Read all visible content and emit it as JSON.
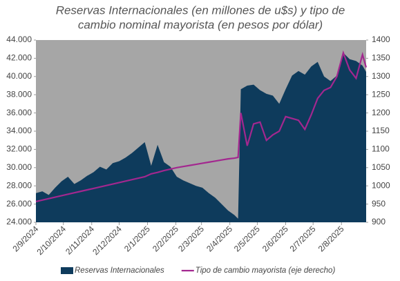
{
  "chart_data": {
    "type": "area-line",
    "title": [
      "Reservas Internacionales (en millones de u$s) y tipo de",
      "cambio nominal mayorista (en pesos por dólar)"
    ],
    "x": [
      "2024-09-02",
      "2024-09-09",
      "2024-09-16",
      "2024-09-23",
      "2024-09-30",
      "2024-10-07",
      "2024-10-14",
      "2024-10-21",
      "2024-10-28",
      "2024-11-04",
      "2024-11-11",
      "2024-11-18",
      "2024-11-25",
      "2024-12-02",
      "2024-12-09",
      "2024-12-16",
      "2024-12-23",
      "2024-12-30",
      "2025-01-06",
      "2025-01-13",
      "2025-01-20",
      "2025-01-27",
      "2025-02-03",
      "2025-02-10",
      "2025-02-17",
      "2025-02-24",
      "2025-03-03",
      "2025-03-10",
      "2025-03-17",
      "2025-03-24",
      "2025-03-31",
      "2025-04-07",
      "2025-04-11",
      "2025-04-14",
      "2025-04-21",
      "2025-04-28",
      "2025-05-05",
      "2025-05-12",
      "2025-05-19",
      "2025-05-26",
      "2025-06-02",
      "2025-06-09",
      "2025-06-16",
      "2025-06-23",
      "2025-06-30",
      "2025-07-07",
      "2025-07-14",
      "2025-07-21",
      "2025-07-28",
      "2025-08-04",
      "2025-08-11",
      "2025-08-18",
      "2025-08-25",
      "2025-08-29"
    ],
    "series": [
      {
        "name": "Reservas Internacionales",
        "color": "#0e3b5c",
        "kind": "area",
        "axis": "y",
        "values": [
          27200,
          27400,
          27000,
          27800,
          28500,
          29000,
          28200,
          28600,
          29100,
          29500,
          30100,
          29800,
          30500,
          30700,
          31100,
          31600,
          32200,
          32800,
          30200,
          32500,
          30600,
          30100,
          29000,
          28600,
          28300,
          28000,
          27800,
          27200,
          26700,
          26000,
          25300,
          24800,
          24400,
          38600,
          39000,
          39100,
          38500,
          38100,
          37900,
          37000,
          38600,
          40100,
          40600,
          40200,
          41100,
          41600,
          40000,
          39500,
          40100,
          42600,
          41900,
          41700,
          41200,
          40500
        ]
      },
      {
        "name": "Tipo de cambio mayorista (eje derecho)",
        "color": "#a3278f",
        "kind": "line",
        "axis": "y2",
        "values": [
          957,
          961,
          965,
          969,
          973,
          977,
          981,
          985,
          989,
          993,
          997,
          1001,
          1005,
          1009,
          1013,
          1017,
          1021,
          1025,
          1033,
          1037,
          1042,
          1046,
          1050,
          1053,
          1056,
          1059,
          1062,
          1065,
          1068,
          1071,
          1074,
          1076,
          1078,
          1200,
          1110,
          1170,
          1175,
          1125,
          1140,
          1150,
          1190,
          1185,
          1180,
          1155,
          1195,
          1240,
          1262,
          1270,
          1300,
          1365,
          1318,
          1295,
          1360,
          1325
        ]
      }
    ],
    "xlim": [
      "2024-09-02",
      "2025-08-29"
    ],
    "xticks": [
      {
        "value": "2024-09-02",
        "label": "2/9/2024"
      },
      {
        "value": "2024-10-02",
        "label": "2/10/2024"
      },
      {
        "value": "2024-11-02",
        "label": "2/11/2024"
      },
      {
        "value": "2024-12-02",
        "label": "2/12/2024"
      },
      {
        "value": "2025-01-02",
        "label": "2/1/2025"
      },
      {
        "value": "2025-02-02",
        "label": "2/2/2025"
      },
      {
        "value": "2025-03-02",
        "label": "2/3/2025"
      },
      {
        "value": "2025-04-02",
        "label": "2/4/2025"
      },
      {
        "value": "2025-05-02",
        "label": "2/5/2025"
      },
      {
        "value": "2025-06-02",
        "label": "2/6/2025"
      },
      {
        "value": "2025-07-02",
        "label": "2/7/2025"
      },
      {
        "value": "2025-08-02",
        "label": "2/8/2025"
      }
    ],
    "ylim": [
      24000,
      44000
    ],
    "yticks": [
      {
        "value": 24000,
        "label": "24.000"
      },
      {
        "value": 26000,
        "label": "26.000"
      },
      {
        "value": 28000,
        "label": "28.000"
      },
      {
        "value": 30000,
        "label": "30.000"
      },
      {
        "value": 32000,
        "label": "32.000"
      },
      {
        "value": 34000,
        "label": "34.000"
      },
      {
        "value": 36000,
        "label": "36.000"
      },
      {
        "value": 38000,
        "label": "38.000"
      },
      {
        "value": 40000,
        "label": "40.000"
      },
      {
        "value": 42000,
        "label": "42.000"
      },
      {
        "value": 44000,
        "label": "44.000"
      }
    ],
    "y2lim": [
      900,
      1400
    ],
    "y2ticks": [
      900,
      950,
      1000,
      1050,
      1100,
      1150,
      1200,
      1250,
      1300,
      1350,
      1400
    ],
    "plot_background": "#a6a6a6",
    "legend": "bottom"
  }
}
